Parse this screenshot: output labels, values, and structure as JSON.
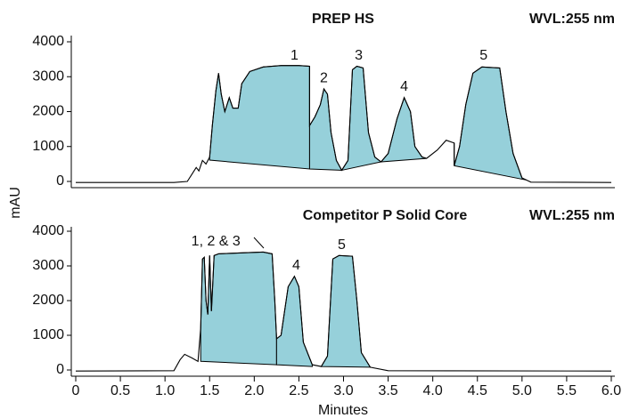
{
  "chart_data": [
    {
      "type": "line",
      "title": "PREP HS",
      "subtitle": "WVL:255 nm",
      "ylabel": "mAU",
      "color": "#000000",
      "fill_color": "#96d0da",
      "xlim": [
        0,
        6
      ],
      "ylim": [
        0,
        4000
      ],
      "yticks": [
        0,
        1000,
        2000,
        3000,
        4000
      ],
      "x": [
        0,
        1.1,
        1.25,
        1.3,
        1.35,
        1.38,
        1.42,
        1.46,
        1.5,
        1.53,
        1.57,
        1.6,
        1.63,
        1.67,
        1.72,
        1.76,
        1.82,
        1.86,
        1.95,
        2.1,
        2.3,
        2.5,
        2.62,
        2.62,
        2.68,
        2.74,
        2.78,
        2.82,
        2.86,
        2.92,
        2.98,
        3.05,
        3.1,
        3.15,
        3.22,
        3.28,
        3.35,
        3.42,
        3.5,
        3.6,
        3.68,
        3.75,
        3.8,
        3.88,
        3.93,
        4.05,
        4.15,
        4.24,
        4.24,
        4.3,
        4.37,
        4.45,
        4.55,
        4.75,
        4.82,
        4.9,
        5.0,
        5.1,
        6.0
      ],
      "values": [
        -30,
        -30,
        0,
        200,
        400,
        300,
        600,
        500,
        700,
        1600,
        2600,
        3100,
        2500,
        2000,
        2400,
        2100,
        2100,
        2800,
        3150,
        3280,
        3320,
        3320,
        3300,
        1600,
        1850,
        2200,
        2650,
        2500,
        1400,
        600,
        320,
        600,
        3200,
        3300,
        3250,
        1400,
        700,
        560,
        800,
        1800,
        2400,
        2000,
        1000,
        700,
        660,
        900,
        1180,
        1100,
        450,
        1000,
        2200,
        3100,
        3280,
        3250,
        2000,
        800,
        100,
        -20,
        -30
      ],
      "baselines": [
        {
          "x": [
            1.5,
            2.62
          ],
          "values": [
            610,
            357
          ]
        },
        {
          "x": [
            2.62,
            2.98
          ],
          "values": [
            357,
            320
          ]
        },
        {
          "x": [
            2.98,
            3.42
          ],
          "values": [
            320,
            560
          ]
        },
        {
          "x": [
            3.42,
            3.93
          ],
          "values": [
            560,
            660
          ]
        },
        {
          "x": [
            4.24,
            5.05
          ],
          "values": [
            450,
            40
          ]
        }
      ],
      "annotations": [
        {
          "text": "1",
          "x": 2.45,
          "y": 3600
        },
        {
          "text": "2",
          "x": 2.78,
          "y": 2950
        },
        {
          "text": "3",
          "x": 3.17,
          "y": 3600
        },
        {
          "text": "4",
          "x": 3.68,
          "y": 2700
        },
        {
          "text": "5",
          "x": 4.57,
          "y": 3600
        }
      ]
    },
    {
      "type": "line",
      "title": "Competitor P Solid Core",
      "subtitle": "WVL:255 nm",
      "xlabel": "Minutes",
      "color": "#000000",
      "fill_color": "#96d0da",
      "xlim": [
        0,
        6
      ],
      "ylim": [
        0,
        4000
      ],
      "yticks": [
        0,
        1000,
        2000,
        3000,
        4000
      ],
      "xticks": [
        0,
        0.5,
        {
          "value": 1,
          "label": "1.0"
        },
        1.5,
        {
          "value": 2,
          "label": "2.0"
        },
        2.5,
        {
          "value": 3,
          "label": "3.0"
        },
        3.5,
        {
          "value": 4,
          "label": "4.0"
        },
        4.5,
        {
          "value": 5,
          "label": "5.0"
        },
        5.5,
        {
          "value": 6,
          "label": "6.0"
        }
      ],
      "x": [
        0,
        1.1,
        1.17,
        1.22,
        1.3,
        1.37,
        1.4,
        1.42,
        1.44,
        1.46,
        1.48,
        1.5,
        1.52,
        1.55,
        1.6,
        1.9,
        2.1,
        2.2,
        2.23,
        2.25,
        2.3,
        2.38,
        2.45,
        2.5,
        2.55,
        2.65,
        2.75,
        2.82,
        2.88,
        2.95,
        3.1,
        3.15,
        3.2,
        3.3,
        3.5,
        6.0
      ],
      "values": [
        -30,
        -20,
        300,
        450,
        350,
        250,
        1200,
        3200,
        3250,
        2000,
        1600,
        3300,
        1700,
        3300,
        3350,
        3380,
        3400,
        3350,
        2000,
        900,
        1000,
        2400,
        2700,
        2400,
        800,
        150,
        100,
        400,
        3200,
        3300,
        3280,
        2000,
        500,
        80,
        -20,
        -30
      ],
      "baselines": [
        {
          "x": [
            1.4,
            2.25
          ],
          "values": [
            250,
            150
          ]
        },
        {
          "x": [
            2.25,
            2.65
          ],
          "values": [
            150,
            100
          ]
        },
        {
          "x": [
            2.75,
            3.3
          ],
          "values": [
            100,
            80
          ]
        }
      ],
      "annotations": [
        {
          "text": "1, 2 & 3",
          "x": 1.57,
          "y": 3700
        },
        {
          "text": "4",
          "x": 2.47,
          "y": 3000
        },
        {
          "text": "5",
          "x": 2.98,
          "y": 3600
        }
      ]
    }
  ]
}
